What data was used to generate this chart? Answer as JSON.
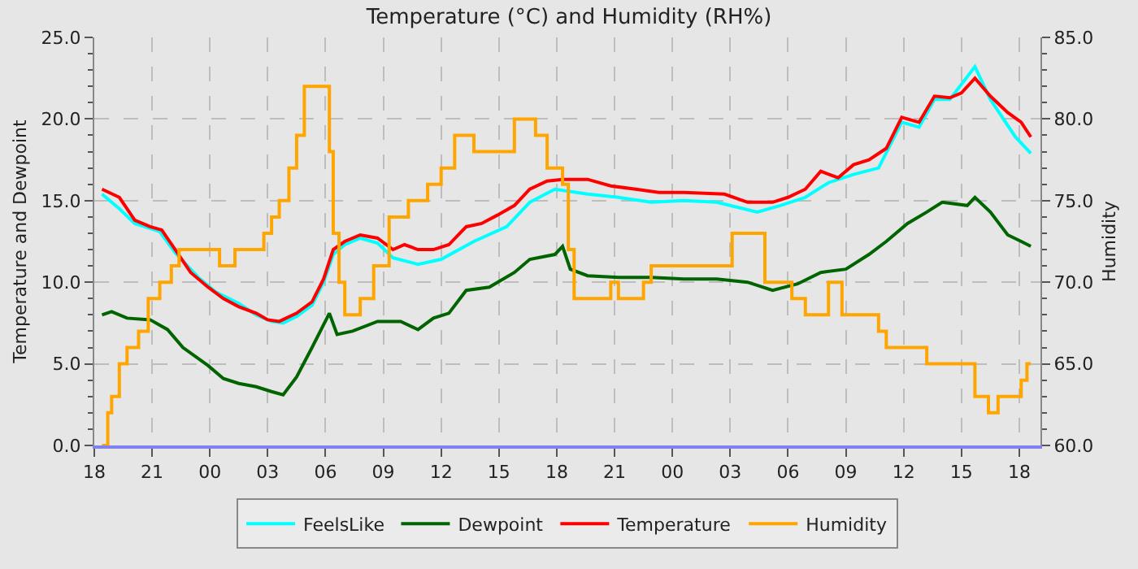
{
  "chart_data": {
    "type": "line",
    "title": "Temperature (°C) and Humidity (RH%)",
    "ylabel": "Temperature and Dewpoint",
    "y2label": "Humidity",
    "xlim": [
      18,
      67.1
    ],
    "xticks": [
      {
        "value": 18,
        "label": "18"
      },
      {
        "value": 21,
        "label": "21"
      },
      {
        "value": 24,
        "label": "00"
      },
      {
        "value": 27,
        "label": "03"
      },
      {
        "value": 30,
        "label": "06"
      },
      {
        "value": 33,
        "label": "09"
      },
      {
        "value": 36,
        "label": "12"
      },
      {
        "value": 39,
        "label": "15"
      },
      {
        "value": 42,
        "label": "18"
      },
      {
        "value": 45,
        "label": "21"
      },
      {
        "value": 48,
        "label": "00"
      },
      {
        "value": 51,
        "label": "03"
      },
      {
        "value": 54,
        "label": "06"
      },
      {
        "value": 57,
        "label": "09"
      },
      {
        "value": 60,
        "label": "12"
      },
      {
        "value": 63,
        "label": "15"
      },
      {
        "value": 66,
        "label": "18"
      }
    ],
    "ylim": [
      0,
      25
    ],
    "yticks": [
      {
        "value": 0,
        "label": "0.0"
      },
      {
        "value": 5,
        "label": "5.0"
      },
      {
        "value": 10,
        "label": "10.0"
      },
      {
        "value": 15,
        "label": "15.0"
      },
      {
        "value": 20,
        "label": "20.0"
      },
      {
        "value": 25,
        "label": "25.0"
      }
    ],
    "y2lim": [
      60,
      85
    ],
    "y2ticks": [
      {
        "value": 60,
        "label": "60.0"
      },
      {
        "value": 65,
        "label": "65.0"
      },
      {
        "value": 70,
        "label": "70.0"
      },
      {
        "value": 75,
        "label": "75.0"
      },
      {
        "value": 80,
        "label": "80.0"
      },
      {
        "value": 85,
        "label": "85.0"
      }
    ],
    "grid": true,
    "legend": "bottom",
    "line_style": "solid",
    "marker": "none",
    "series": [
      {
        "name": "FeelsLike",
        "color": "#00ffff",
        "x": [
          18.4,
          19.3,
          20.1,
          21.4,
          22.2,
          23.4,
          24.3,
          25.5,
          26.4,
          27.2,
          27.8,
          28.5,
          29.3,
          29.9,
          30.4,
          31.0,
          31.8,
          32.7,
          33.5,
          34.8,
          36.0,
          37.7,
          39.4,
          40.6,
          41.9,
          43.6,
          45.2,
          46.9,
          48.6,
          50.3,
          52.4,
          53.6,
          54.9,
          56.1,
          57.4,
          58.7,
          59.9,
          60.8,
          61.6,
          62.4,
          63.7,
          64.5,
          65.8,
          66.6
        ],
        "values": [
          15.4,
          14.5,
          13.6,
          13.1,
          11.8,
          10.3,
          9.4,
          8.7,
          8.0,
          7.6,
          7.5,
          7.9,
          8.6,
          10.0,
          11.7,
          12.3,
          12.7,
          12.4,
          11.5,
          11.1,
          11.4,
          12.5,
          13.4,
          14.9,
          15.7,
          15.4,
          15.2,
          14.9,
          15.0,
          14.9,
          14.3,
          14.7,
          15.2,
          16.1,
          16.6,
          17.0,
          19.8,
          19.5,
          21.2,
          21.2,
          23.2,
          21.2,
          18.9,
          17.9
        ]
      },
      {
        "name": "Dewpoint",
        "color": "#006400",
        "x": [
          18.4,
          18.9,
          19.7,
          20.9,
          21.8,
          22.6,
          23.9,
          24.7,
          25.5,
          26.4,
          27.2,
          27.8,
          28.5,
          29.3,
          30.2,
          30.6,
          31.4,
          32.7,
          33.9,
          34.8,
          35.6,
          36.4,
          37.3,
          38.5,
          39.8,
          40.6,
          41.9,
          42.3,
          42.7,
          43.6,
          45.2,
          46.9,
          48.6,
          50.3,
          51.9,
          53.2,
          54.5,
          55.7,
          57.0,
          58.2,
          59.1,
          60.2,
          61.2,
          62.0,
          63.3,
          63.7,
          64.5,
          65.4,
          66.1,
          66.6
        ],
        "values": [
          8.0,
          8.2,
          7.8,
          7.7,
          7.1,
          6.0,
          4.9,
          4.1,
          3.8,
          3.6,
          3.3,
          3.1,
          4.2,
          6.0,
          8.1,
          6.8,
          7.0,
          7.6,
          7.6,
          7.1,
          7.8,
          8.1,
          9.5,
          9.7,
          10.6,
          11.4,
          11.7,
          12.2,
          10.8,
          10.4,
          10.3,
          10.3,
          10.2,
          10.2,
          10.0,
          9.5,
          9.9,
          10.6,
          10.8,
          11.7,
          12.5,
          13.6,
          14.3,
          14.9,
          14.7,
          15.2,
          14.3,
          12.9,
          12.5,
          12.2
        ]
      },
      {
        "name": "Temperature",
        "color": "#ff0000",
        "x": [
          18.4,
          19.3,
          20.1,
          20.9,
          21.5,
          22.2,
          23.0,
          23.9,
          24.7,
          25.5,
          26.4,
          27.0,
          27.6,
          28.5,
          29.3,
          29.9,
          30.4,
          31.0,
          31.8,
          32.7,
          33.5,
          34.1,
          34.8,
          35.6,
          36.4,
          37.3,
          38.1,
          38.9,
          39.8,
          40.6,
          41.5,
          42.3,
          43.6,
          44.8,
          46.1,
          47.3,
          48.6,
          50.7,
          51.9,
          53.2,
          54.0,
          54.9,
          55.7,
          56.6,
          57.4,
          58.2,
          59.1,
          59.9,
          60.8,
          61.6,
          62.4,
          63.0,
          63.7,
          64.5,
          65.4,
          66.1,
          66.6
        ],
        "values": [
          15.7,
          15.2,
          13.8,
          13.4,
          13.2,
          12.0,
          10.6,
          9.7,
          9.0,
          8.5,
          8.1,
          7.7,
          7.6,
          8.1,
          8.8,
          10.2,
          12.0,
          12.5,
          12.9,
          12.7,
          12.0,
          12.3,
          12.0,
          12.0,
          12.3,
          13.4,
          13.6,
          14.1,
          14.7,
          15.7,
          16.2,
          16.3,
          16.3,
          15.9,
          15.7,
          15.5,
          15.5,
          15.4,
          14.9,
          14.9,
          15.2,
          15.7,
          16.8,
          16.4,
          17.2,
          17.5,
          18.2,
          20.1,
          19.8,
          21.4,
          21.3,
          21.6,
          22.5,
          21.4,
          20.4,
          19.8,
          18.9
        ]
      },
      {
        "name": "Humidity",
        "color": "#ffa500",
        "type": "step",
        "axis": "y2",
        "x": [
          18.4,
          18.7,
          18.9,
          19.3,
          19.7,
          20.3,
          20.8,
          21.4,
          22.0,
          22.4,
          24.5,
          25.3,
          26.8,
          27.2,
          27.6,
          28.1,
          28.5,
          28.9,
          29.1,
          30.2,
          30.4,
          30.7,
          31.0,
          31.8,
          32.5,
          33.3,
          34.3,
          35.3,
          36.0,
          36.7,
          37.7,
          39.8,
          40.9,
          41.5,
          42.3,
          42.6,
          42.9,
          44.8,
          45.2,
          46.5,
          46.9,
          47.8,
          51.1,
          52.8,
          54.2,
          54.9,
          56.1,
          56.8,
          57.8,
          58.7,
          59.1,
          60.8,
          61.2,
          63.7,
          64.4,
          64.9,
          66.1,
          66.4,
          66.6
        ],
        "values": [
          60,
          62,
          63,
          65,
          66,
          67,
          69,
          70,
          71,
          72,
          71,
          72,
          73,
          74,
          75,
          77,
          79,
          82,
          82,
          78,
          73,
          70,
          68,
          69,
          71,
          74,
          75,
          76,
          77,
          79,
          78,
          80,
          79,
          77,
          76,
          72,
          69,
          70,
          69,
          70,
          71,
          71,
          73,
          70,
          69,
          68,
          70,
          68,
          68,
          67,
          66,
          66,
          65,
          63,
          62,
          63,
          64,
          65,
          65
        ]
      }
    ]
  }
}
